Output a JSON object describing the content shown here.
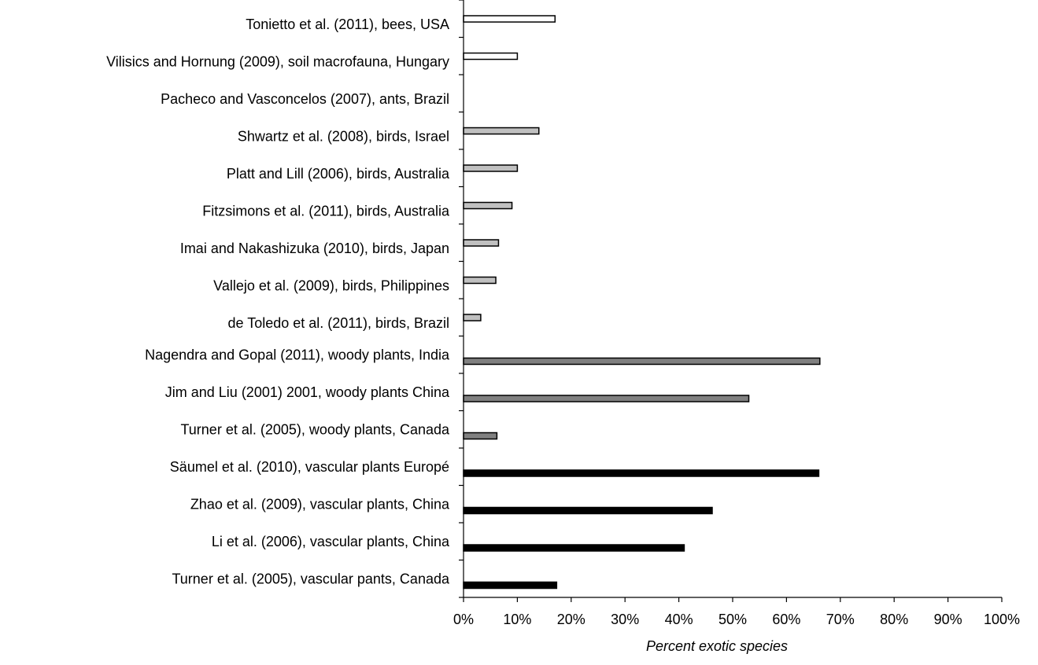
{
  "chart_data": {
    "type": "bar",
    "orientation": "horizontal",
    "xlabel": "Percent exotic species",
    "ylabel": "",
    "xlim": [
      0,
      100
    ],
    "x_ticks": [
      "0%",
      "10%",
      "20%",
      "30%",
      "40%",
      "50%",
      "60%",
      "70%",
      "80%",
      "90%",
      "100%"
    ],
    "grid": false,
    "colors": {
      "bees_soil_ants": "#ffffff",
      "birds": "#c0c0c0",
      "woody_plants": "#808080",
      "vascular_plants": "#000000",
      "bar_outline": "#000000",
      "axis": "#000000"
    },
    "categories": [
      "Tonietto et al. (2011), bees, USA",
      "Vilisics and Hornung (2009), soil macrofauna, Hungary",
      "Pacheco and Vasconcelos (2007), ants, Brazil",
      "Shwartz et al. (2008), birds, Israel",
      "Platt and Lill (2006), birds, Australia",
      "Fitzsimons et al. (2011), birds, Australia",
      "Imai and Nakashizuka (2010), birds, Japan",
      "Vallejo  et al. (2009), birds, Philippines",
      "de Toledo et al. (2011), birds, Brazil",
      "Nagendra and Gopal (2011), woody plants, India",
      "Jim and Liu (2001) 2001, woody plants China",
      "Turner et al. (2005), woody plants, Canada",
      "Säumel et al. (2010), vascular plants Europé",
      "Zhao et al. (2009), vascular plants, China",
      "Li et al. (2006), vascular plants, China",
      "Turner et al. (2005), vascular pants, Canada"
    ],
    "values": [
      17,
      10,
      0,
      14,
      10,
      9,
      6.5,
      6,
      3.2,
      66.2,
      53,
      6.2,
      66,
      46.2,
      41,
      17.3
    ],
    "groups": [
      "bees_soil_ants",
      "bees_soil_ants",
      "bees_soil_ants",
      "birds",
      "birds",
      "birds",
      "birds",
      "birds",
      "birds",
      "woody_plants",
      "woody_plants",
      "woody_plants",
      "vascular_plants",
      "vascular_plants",
      "vascular_plants",
      "vascular_plants"
    ]
  }
}
